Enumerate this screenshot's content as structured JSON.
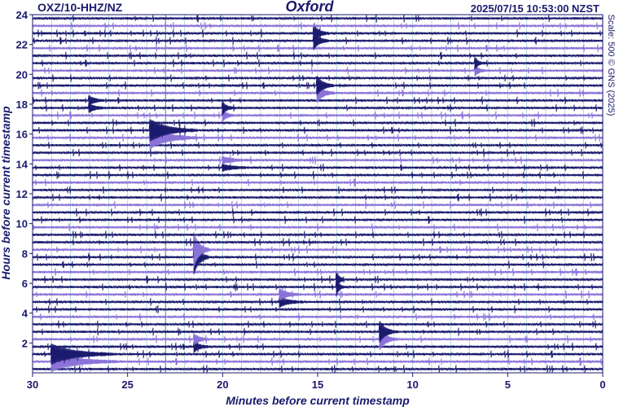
{
  "header": {
    "station": "OXZ/10-HHZ/NZ",
    "title": "Oxford",
    "timestamp": "2025/07/15 10:53:00 NZST"
  },
  "scale_note": "Scale: 500 © GNS (2025)",
  "colors": {
    "trace_dark": "#1a1a6e",
    "trace_light": "#8a72d8",
    "grid": "#5fa8b4",
    "text": "#1a1a6e"
  },
  "chart_data": {
    "type": "heatmap",
    "title": "Oxford",
    "xlabel": "Minutes before current timestamp",
    "ylabel": "Hours before current timestamp",
    "xlim": [
      30,
      0
    ],
    "ylim": [
      0,
      24
    ],
    "x_ticks": [
      "30",
      "25",
      "20",
      "15",
      "10",
      "5",
      "0"
    ],
    "y_ticks": [
      "2",
      "4",
      "6",
      "8",
      "10",
      "12",
      "14",
      "16",
      "18",
      "20",
      "22",
      "24"
    ],
    "trace_count": 48,
    "highlight_minute": 23,
    "events": [
      {
        "hours_before": 22.5,
        "minute": 15.2,
        "amplitude": 0.8,
        "duration": 0.8
      },
      {
        "hours_before": 20.5,
        "minute": 6.7,
        "amplitude": 0.5,
        "duration": 0.5
      },
      {
        "hours_before": 19.0,
        "minute": 15.0,
        "amplitude": 0.8,
        "duration": 0.9
      },
      {
        "hours_before": 18.0,
        "minute": 27.0,
        "amplitude": 0.4,
        "duration": 0.8
      },
      {
        "hours_before": 17.5,
        "minute": 20.0,
        "amplitude": 0.6,
        "duration": 0.6
      },
      {
        "hours_before": 16.0,
        "minute": 23.8,
        "amplitude": 1.0,
        "duration": 2.5
      },
      {
        "hours_before": 14.0,
        "minute": 20.0,
        "amplitude": 0.3,
        "duration": 1.5
      },
      {
        "hours_before": 8.0,
        "minute": 21.5,
        "amplitude": 1.6,
        "duration": 0.8
      },
      {
        "hours_before": 6.0,
        "minute": 14.0,
        "amplitude": 0.8,
        "duration": 0.4
      },
      {
        "hours_before": 5.0,
        "minute": 17.0,
        "amplitude": 0.5,
        "duration": 1.2
      },
      {
        "hours_before": 2.5,
        "minute": 11.7,
        "amplitude": 0.9,
        "duration": 0.9
      },
      {
        "hours_before": 2.0,
        "minute": 21.5,
        "amplitude": 0.5,
        "duration": 0.8
      },
      {
        "hours_before": 1.0,
        "minute": 29.0,
        "amplitude": 0.9,
        "duration": 3.5
      }
    ]
  }
}
